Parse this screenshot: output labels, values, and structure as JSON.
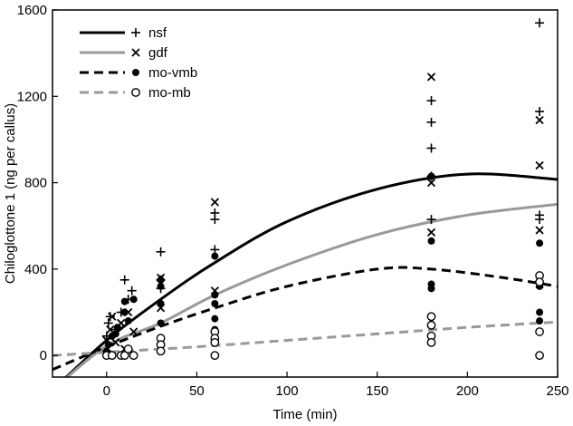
{
  "chart_data": {
    "type": "scatter",
    "title": "",
    "xlabel": "Time (min)",
    "ylabel": "Chiloglottone 1 (ng per callus)",
    "xlim": [
      -30,
      250
    ],
    "ylim": [
      -100,
      1600
    ],
    "xticks": [
      0,
      50,
      100,
      150,
      200,
      250
    ],
    "yticks": [
      0,
      400,
      800,
      1200,
      1600
    ],
    "legend_position": "top-left",
    "series": [
      {
        "name": "nsf",
        "marker": "+",
        "line_style": "solid",
        "color": "#000000",
        "points": [
          [
            0,
            20
          ],
          [
            0,
            90
          ],
          [
            1,
            150
          ],
          [
            2,
            180
          ],
          [
            5,
            120
          ],
          [
            8,
            200
          ],
          [
            10,
            350
          ],
          [
            12,
            260
          ],
          [
            14,
            300
          ],
          [
            30,
            480
          ],
          [
            30,
            350
          ],
          [
            30,
            310
          ],
          [
            60,
            490
          ],
          [
            60,
            660
          ],
          [
            60,
            630
          ],
          [
            180,
            830
          ],
          [
            180,
            960
          ],
          [
            180,
            1080
          ],
          [
            180,
            1180
          ],
          [
            180,
            630
          ],
          [
            240,
            1540
          ],
          [
            240,
            1130
          ],
          [
            240,
            650
          ],
          [
            240,
            630
          ]
        ],
        "fit": [
          [
            -30,
            -160
          ],
          [
            0,
            70
          ],
          [
            30,
            260
          ],
          [
            60,
            430
          ],
          [
            100,
            620
          ],
          [
            150,
            770
          ],
          [
            200,
            840
          ],
          [
            250,
            815
          ]
        ]
      },
      {
        "name": "gdf",
        "marker": "x",
        "line_style": "solid",
        "color": "#999999",
        "points": [
          [
            0,
            70
          ],
          [
            2,
            120
          ],
          [
            3,
            180
          ],
          [
            5,
            60
          ],
          [
            8,
            150
          ],
          [
            10,
            30
          ],
          [
            12,
            200
          ],
          [
            15,
            110
          ],
          [
            30,
            360
          ],
          [
            30,
            220
          ],
          [
            60,
            710
          ],
          [
            60,
            300
          ],
          [
            180,
            1290
          ],
          [
            180,
            800
          ],
          [
            180,
            570
          ],
          [
            240,
            1090
          ],
          [
            240,
            880
          ],
          [
            240,
            580
          ],
          [
            240,
            330
          ]
        ],
        "fit": [
          [
            -30,
            -160
          ],
          [
            0,
            45
          ],
          [
            30,
            150
          ],
          [
            60,
            280
          ],
          [
            100,
            420
          ],
          [
            150,
            560
          ],
          [
            200,
            650
          ],
          [
            250,
            700
          ]
        ]
      },
      {
        "name": "mo-vmb",
        "marker": "filled-circle",
        "line_style": "dashed",
        "color": "#000000",
        "points": [
          [
            0,
            20
          ],
          [
            1,
            50
          ],
          [
            3,
            90
          ],
          [
            5,
            100
          ],
          [
            6,
            130
          ],
          [
            10,
            250
          ],
          [
            10,
            200
          ],
          [
            12,
            160
          ],
          [
            15,
            260
          ],
          [
            30,
            350
          ],
          [
            30,
            320
          ],
          [
            30,
            240
          ],
          [
            30,
            150
          ],
          [
            60,
            460
          ],
          [
            60,
            280
          ],
          [
            60,
            240
          ],
          [
            60,
            170
          ],
          [
            60,
            120
          ],
          [
            60,
            80
          ],
          [
            180,
            830
          ],
          [
            180,
            530
          ],
          [
            180,
            330
          ],
          [
            180,
            310
          ],
          [
            240,
            520
          ],
          [
            240,
            320
          ],
          [
            240,
            200
          ],
          [
            240,
            160
          ]
        ],
        "fit": [
          [
            -30,
            -65
          ],
          [
            0,
            40
          ],
          [
            30,
            135
          ],
          [
            60,
            220
          ],
          [
            100,
            320
          ],
          [
            150,
            400
          ],
          [
            180,
            400
          ],
          [
            220,
            360
          ],
          [
            250,
            320
          ]
        ]
      },
      {
        "name": "mo-mb",
        "marker": "open-circle",
        "line_style": "dashed",
        "color": "#999999",
        "points": [
          [
            0,
            0
          ],
          [
            3,
            0
          ],
          [
            8,
            0
          ],
          [
            10,
            0
          ],
          [
            12,
            30
          ],
          [
            15,
            0
          ],
          [
            30,
            80
          ],
          [
            30,
            50
          ],
          [
            30,
            20
          ],
          [
            60,
            110
          ],
          [
            60,
            80
          ],
          [
            60,
            60
          ],
          [
            60,
            0
          ],
          [
            180,
            180
          ],
          [
            180,
            140
          ],
          [
            180,
            90
          ],
          [
            180,
            60
          ],
          [
            240,
            370
          ],
          [
            240,
            340
          ],
          [
            240,
            110
          ],
          [
            240,
            0
          ]
        ],
        "fit": [
          [
            -30,
            0
          ],
          [
            0,
            15
          ],
          [
            50,
            40
          ],
          [
            100,
            70
          ],
          [
            150,
            100
          ],
          [
            200,
            130
          ],
          [
            250,
            155
          ]
        ]
      }
    ]
  }
}
